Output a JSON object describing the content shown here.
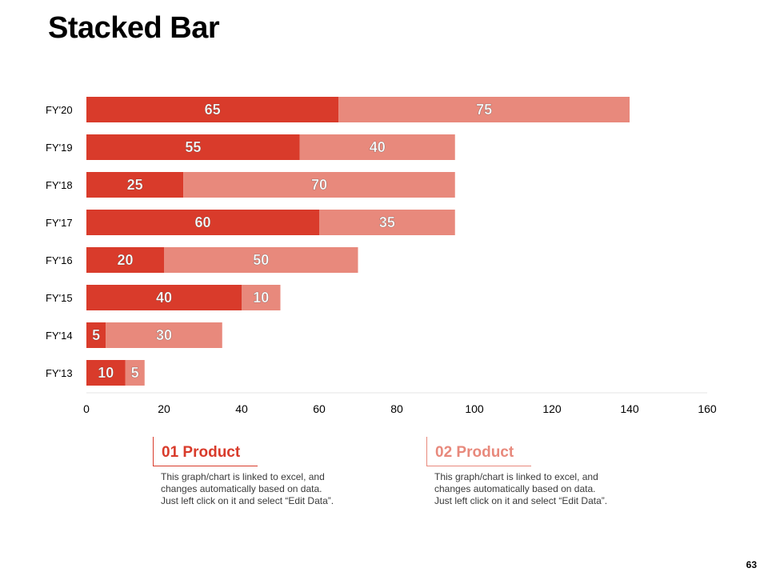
{
  "page": {
    "title": "Stacked Bar",
    "page_number": "63"
  },
  "colors": {
    "product1": "#d93b2b",
    "product2": "#e8897c",
    "gridline": "#e6e6e6"
  },
  "chart_data": {
    "type": "bar",
    "orientation": "horizontal",
    "stacked": true,
    "title": "Stacked Bar",
    "categories": [
      "FY'20",
      "FY'19",
      "FY'18",
      "FY'17",
      "FY'16",
      "FY'15",
      "FY'14",
      "FY'13"
    ],
    "series": [
      {
        "name": "01 Product",
        "values": [
          65,
          55,
          25,
          60,
          20,
          40,
          5,
          10
        ]
      },
      {
        "name": "02 Product",
        "values": [
          75,
          40,
          70,
          35,
          50,
          10,
          30,
          5
        ]
      }
    ],
    "xlim": [
      0,
      160
    ],
    "xticks": [
      0,
      20,
      40,
      60,
      80,
      100,
      120,
      140,
      160
    ],
    "xlabel": "",
    "ylabel": "",
    "grid": false,
    "data_labels": true
  },
  "legend": [
    {
      "label": "01 Product",
      "text": "This graph/chart is linked to excel, and changes automatically based on data. Just left click on it and select “Edit Data”."
    },
    {
      "label": "02 Product",
      "text": "This graph/chart is linked to excel, and changes automatically based on data. Just left click on it and select “Edit Data”."
    }
  ]
}
